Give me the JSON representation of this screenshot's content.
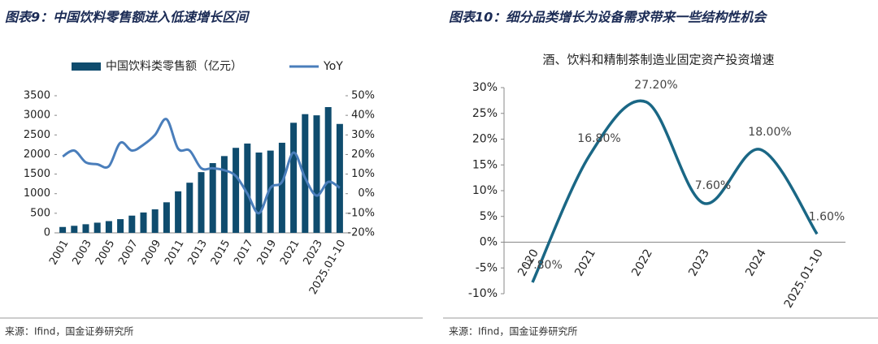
{
  "chart_data": [
    {
      "type": "combo",
      "title": "图表9：中国饮料零售额进入低速增长区间",
      "source": "来源：Ifind，国金证券研究所",
      "categories": [
        "2001",
        null,
        "2003",
        null,
        "2005",
        null,
        "2007",
        null,
        "2009",
        null,
        "2011",
        null,
        "2013",
        null,
        "2015",
        null,
        "2017",
        null,
        "2019",
        null,
        "2021",
        null,
        "2023",
        null,
        "2025.01-10"
      ],
      "series": [
        {
          "name": "中国饮料类零售额（亿元）",
          "type": "bar",
          "color": "#0f4c6e",
          "values": [
            150,
            180,
            220,
            260,
            300,
            350,
            440,
            520,
            600,
            780,
            1060,
            1280,
            1550,
            1780,
            1960,
            2170,
            2280,
            2050,
            2100,
            2300,
            2810,
            3030,
            3000,
            3210,
            2780
          ]
        },
        {
          "name": "YoY",
          "type": "line",
          "axis": "y2",
          "color": "#4a7ebb",
          "values": [
            19,
            22,
            16,
            15,
            14,
            26,
            22,
            25,
            30,
            38,
            23,
            22,
            13,
            13,
            12,
            9,
            0,
            -10,
            3,
            6,
            21,
            8,
            -1,
            6,
            3
          ]
        }
      ],
      "ylim": [
        0,
        3500
      ],
      "yticks": [
        0,
        500,
        1000,
        1500,
        2000,
        2500,
        3000,
        3500
      ],
      "y2lim": [
        -20,
        50
      ],
      "y2ticks": [
        {
          "value": -20,
          "label": "-20%"
        },
        {
          "value": -10,
          "label": "-10%"
        },
        {
          "value": 0,
          "label": "0%"
        },
        {
          "value": 10,
          "label": "10%"
        },
        {
          "value": 20,
          "label": "20%"
        },
        {
          "value": 30,
          "label": "30%"
        },
        {
          "value": 40,
          "label": "40%"
        },
        {
          "value": 50,
          "label": "50%"
        }
      ],
      "legend": "top"
    },
    {
      "type": "line",
      "title": "图表10：细分品类增长为设备需求带来一些结构性机会",
      "subtitle": "酒、饮料和精制茶制造业固定资产投资增速",
      "source": "来源：Ifind，国金证券研究所",
      "categories": [
        "2020",
        "2021",
        "2022",
        "2023",
        "2024",
        "2025.01-10"
      ],
      "values": [
        -7.8,
        16.8,
        27.2,
        7.6,
        18.0,
        1.6
      ],
      "value_labels": [
        "-7.80%",
        "16.80%",
        "27.20%",
        "7.60%",
        "18.00%",
        "1.60%"
      ],
      "color": "#1a6785",
      "ylim": [
        -10,
        30
      ],
      "yticks": [
        {
          "value": -10,
          "label": "-10%"
        },
        {
          "value": -5,
          "label": "-5%"
        },
        {
          "value": 0,
          "label": "0%"
        },
        {
          "value": 5,
          "label": "5%"
        },
        {
          "value": 10,
          "label": "10%"
        },
        {
          "value": 15,
          "label": "15%"
        },
        {
          "value": 20,
          "label": "20%"
        },
        {
          "value": 25,
          "label": "25%"
        },
        {
          "value": 30,
          "label": "30%"
        }
      ]
    }
  ]
}
